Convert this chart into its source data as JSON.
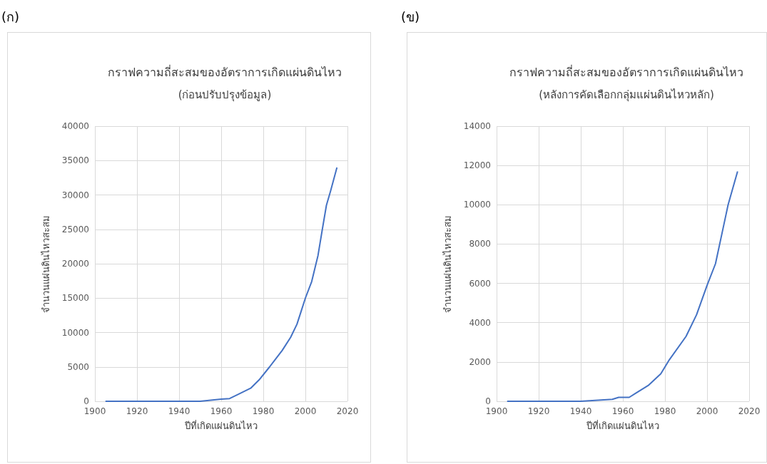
{
  "chart_data": [
    {
      "type": "line",
      "title": "กราฟความถี่สะสมของอัตราการเกิดแผ่นดินไหว",
      "subtitle": "(ก่อนปรับปรุงข้อมูล)",
      "xlabel": "ปีที่เกิดแผ่นดินไหว",
      "ylabel": "จำนวนแผ่นดินไหวสะสม",
      "annotations": [
        "(ก)"
      ],
      "series": [
        {
          "color": "#4472c4",
          "x": [
            1905,
            1920,
            1940,
            1950,
            1960,
            1964,
            1968,
            1974,
            1978,
            1983,
            1989,
            1993,
            1996,
            1998,
            2000,
            2003,
            2006,
            2008,
            2010,
            2012,
            2015
          ],
          "values": [
            0,
            0,
            0,
            0,
            300,
            400,
            1000,
            1900,
            3100,
            5000,
            7400,
            9300,
            11200,
            13100,
            15000,
            17400,
            21200,
            24900,
            28500,
            30600,
            34000
          ]
        }
      ],
      "xlim": [
        1900,
        2020
      ],
      "xticks": [
        1900,
        1920,
        1940,
        1960,
        1980,
        2000,
        2020
      ],
      "ylim": [
        0,
        40000
      ],
      "yticks": [
        0,
        5000,
        10000,
        15000,
        20000,
        25000,
        30000,
        35000,
        40000
      ],
      "grid": true,
      "marker": "none",
      "line_style": "solid"
    },
    {
      "type": "line",
      "title": "กราฟความถี่สะสมของอัตราการเกิดแผ่นดินไหว",
      "subtitle": "(หลังการคัดเลือกกลุ่มแผ่นดินไหวหลัก)",
      "xlabel": "ปีที่เกิดแผ่นดินไหว",
      "ylabel": "จำนวนแผ่นดินไหวสะสม",
      "annotations": [
        "(ข)"
      ],
      "series": [
        {
          "color": "#4472c4",
          "x": [
            1905,
            1920,
            1940,
            1955,
            1958,
            1963,
            1966,
            1972,
            1978,
            1982,
            1990,
            1995,
            2000,
            2004,
            2008,
            2010,
            2014.5
          ],
          "values": [
            0,
            0,
            0,
            100,
            200,
            200,
            400,
            800,
            1400,
            2100,
            3300,
            4400,
            5900,
            7000,
            9000,
            10000,
            11700
          ]
        }
      ],
      "xlim": [
        1900,
        2020
      ],
      "xticks": [
        1900,
        1920,
        1940,
        1960,
        1980,
        2000,
        2020
      ],
      "ylim": [
        0,
        14000
      ],
      "yticks": [
        0,
        2000,
        4000,
        6000,
        8000,
        10000,
        12000,
        14000
      ],
      "grid": true,
      "marker": "none",
      "line_style": "solid"
    }
  ]
}
